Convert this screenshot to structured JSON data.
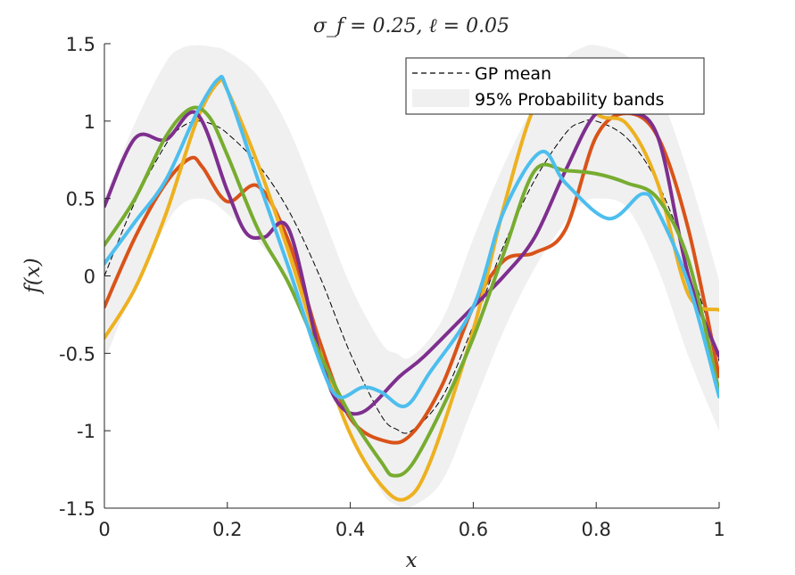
{
  "chart_data": {
    "type": "line",
    "title": "σ_f = 0.25, ℓ = 0.05",
    "xlabel": "x",
    "ylabel": "f(x)",
    "xlim": [
      0,
      1
    ],
    "ylim": [
      -1.5,
      1.5
    ],
    "x_ticks": [
      0,
      0.2,
      0.4,
      0.6,
      0.8,
      1
    ],
    "x_tick_labels": [
      "0",
      "0.2",
      "0.4",
      "0.6",
      "0.8",
      "1"
    ],
    "y_ticks": [
      -1.5,
      -1,
      -0.5,
      0,
      0.5,
      1,
      1.5
    ],
    "y_tick_labels": [
      "-1.5",
      "-1",
      "-0.5",
      "0",
      "0.5",
      "1",
      "1.5"
    ],
    "grid": false,
    "legend_position": "top-right",
    "legend": [
      "GP mean",
      "95% Probability bands"
    ],
    "band": {
      "name": "95% Probability bands",
      "color": "#f0f0f0",
      "x": [
        0,
        0.05,
        0.1,
        0.125,
        0.15,
        0.175,
        0.2,
        0.25,
        0.3,
        0.35,
        0.4,
        0.45,
        0.475,
        0.5,
        0.55,
        0.6,
        0.65,
        0.7,
        0.75,
        0.775,
        0.8,
        0.85,
        0.9,
        0.95,
        1
      ],
      "upper": [
        0.5,
        0.99,
        1.38,
        1.47,
        1.49,
        1.48,
        1.45,
        1.29,
        0.95,
        0.45,
        -0.06,
        -0.43,
        -0.5,
        -0.52,
        -0.28,
        0.24,
        0.72,
        1.11,
        1.4,
        1.47,
        1.49,
        1.42,
        1.2,
        0.66,
        -0.03
      ],
      "lower": [
        -0.55,
        -0.07,
        0.33,
        0.46,
        0.5,
        0.48,
        0.4,
        0.22,
        -0.05,
        -0.55,
        -1.02,
        -1.39,
        -1.48,
        -1.49,
        -1.32,
        -0.84,
        -0.35,
        0.05,
        0.35,
        0.46,
        0.5,
        0.44,
        0.05,
        -0.52,
        -1.0
      ]
    },
    "series": [
      {
        "name": "GP mean",
        "color": "#000000",
        "style": "dashed",
        "x": [
          0,
          0.05,
          0.1,
          0.125,
          0.15,
          0.175,
          0.2,
          0.25,
          0.3,
          0.35,
          0.4,
          0.45,
          0.475,
          0.5,
          0.55,
          0.6,
          0.65,
          0.7,
          0.75,
          0.775,
          0.8,
          0.85,
          0.9,
          0.95,
          1
        ],
        "y": [
          0,
          0.48,
          0.85,
          0.96,
          1.0,
          0.98,
          0.92,
          0.72,
          0.42,
          0.0,
          -0.5,
          -0.9,
          -0.99,
          -1.0,
          -0.78,
          -0.32,
          0.2,
          0.62,
          0.92,
          0.99,
          1.0,
          0.89,
          0.6,
          0.1,
          -0.55
        ]
      },
      {
        "color": "#d95319",
        "x": [
          0,
          0.05,
          0.1,
          0.14,
          0.16,
          0.2,
          0.25,
          0.3,
          0.35,
          0.4,
          0.46,
          0.5,
          0.55,
          0.6,
          0.65,
          0.7,
          0.75,
          0.8,
          0.85,
          0.9,
          0.95,
          1
        ],
        "y": [
          -0.2,
          0.25,
          0.6,
          0.76,
          0.7,
          0.48,
          0.58,
          0.22,
          -0.42,
          -0.92,
          -1.07,
          -1.02,
          -0.7,
          -0.2,
          0.1,
          0.15,
          0.3,
          0.9,
          1.05,
          0.9,
          0.3,
          -0.65
        ]
      },
      {
        "color": "#edb120",
        "x": [
          0,
          0.05,
          0.1,
          0.15,
          0.185,
          0.2,
          0.25,
          0.3,
          0.35,
          0.4,
          0.45,
          0.49,
          0.53,
          0.6,
          0.65,
          0.7,
          0.75,
          0.8,
          0.85,
          0.9,
          0.95,
          1
        ],
        "y": [
          -0.4,
          -0.08,
          0.4,
          1.0,
          1.25,
          1.2,
          0.72,
          0.15,
          -0.48,
          -1.02,
          -1.35,
          -1.44,
          -1.2,
          -0.35,
          0.45,
          1.1,
          1.35,
          1.05,
          0.98,
          0.6,
          -0.12,
          -0.22
        ]
      },
      {
        "color": "#7e2f8e",
        "x": [
          0,
          0.05,
          0.1,
          0.15,
          0.2,
          0.23,
          0.26,
          0.3,
          0.35,
          0.38,
          0.42,
          0.48,
          0.52,
          0.6,
          0.65,
          0.7,
          0.75,
          0.8,
          0.85,
          0.9,
          0.95,
          1
        ],
        "y": [
          0.45,
          0.89,
          0.88,
          1.05,
          0.55,
          0.28,
          0.25,
          0.3,
          -0.5,
          -0.82,
          -0.88,
          -0.65,
          -0.52,
          -0.2,
          0.0,
          0.25,
          0.68,
          1.05,
          1.06,
          0.9,
          0.0,
          -0.52
        ]
      },
      {
        "color": "#77ac30",
        "x": [
          0,
          0.05,
          0.1,
          0.14,
          0.17,
          0.2,
          0.25,
          0.3,
          0.35,
          0.4,
          0.45,
          0.47,
          0.5,
          0.55,
          0.6,
          0.65,
          0.7,
          0.75,
          0.8,
          0.85,
          0.9,
          0.95,
          1
        ],
        "y": [
          0.2,
          0.5,
          0.9,
          1.08,
          1.03,
          0.78,
          0.3,
          -0.05,
          -0.5,
          -0.9,
          -1.2,
          -1.29,
          -1.22,
          -0.85,
          -0.4,
          0.15,
          0.68,
          0.68,
          0.66,
          0.6,
          0.5,
          0.1,
          -0.75
        ]
      },
      {
        "color": "#4dbeee",
        "x": [
          0,
          0.05,
          0.1,
          0.15,
          0.185,
          0.2,
          0.25,
          0.3,
          0.35,
          0.38,
          0.42,
          0.45,
          0.49,
          0.53,
          0.6,
          0.65,
          0.71,
          0.75,
          0.82,
          0.875,
          0.9,
          0.95,
          1
        ],
        "y": [
          0.08,
          0.35,
          0.62,
          1.05,
          1.27,
          1.2,
          0.62,
          0.05,
          -0.55,
          -0.78,
          -0.72,
          -0.75,
          -0.84,
          -0.62,
          -0.2,
          0.42,
          0.8,
          0.6,
          0.37,
          0.53,
          0.42,
          -0.05,
          -0.78
        ]
      }
    ]
  }
}
